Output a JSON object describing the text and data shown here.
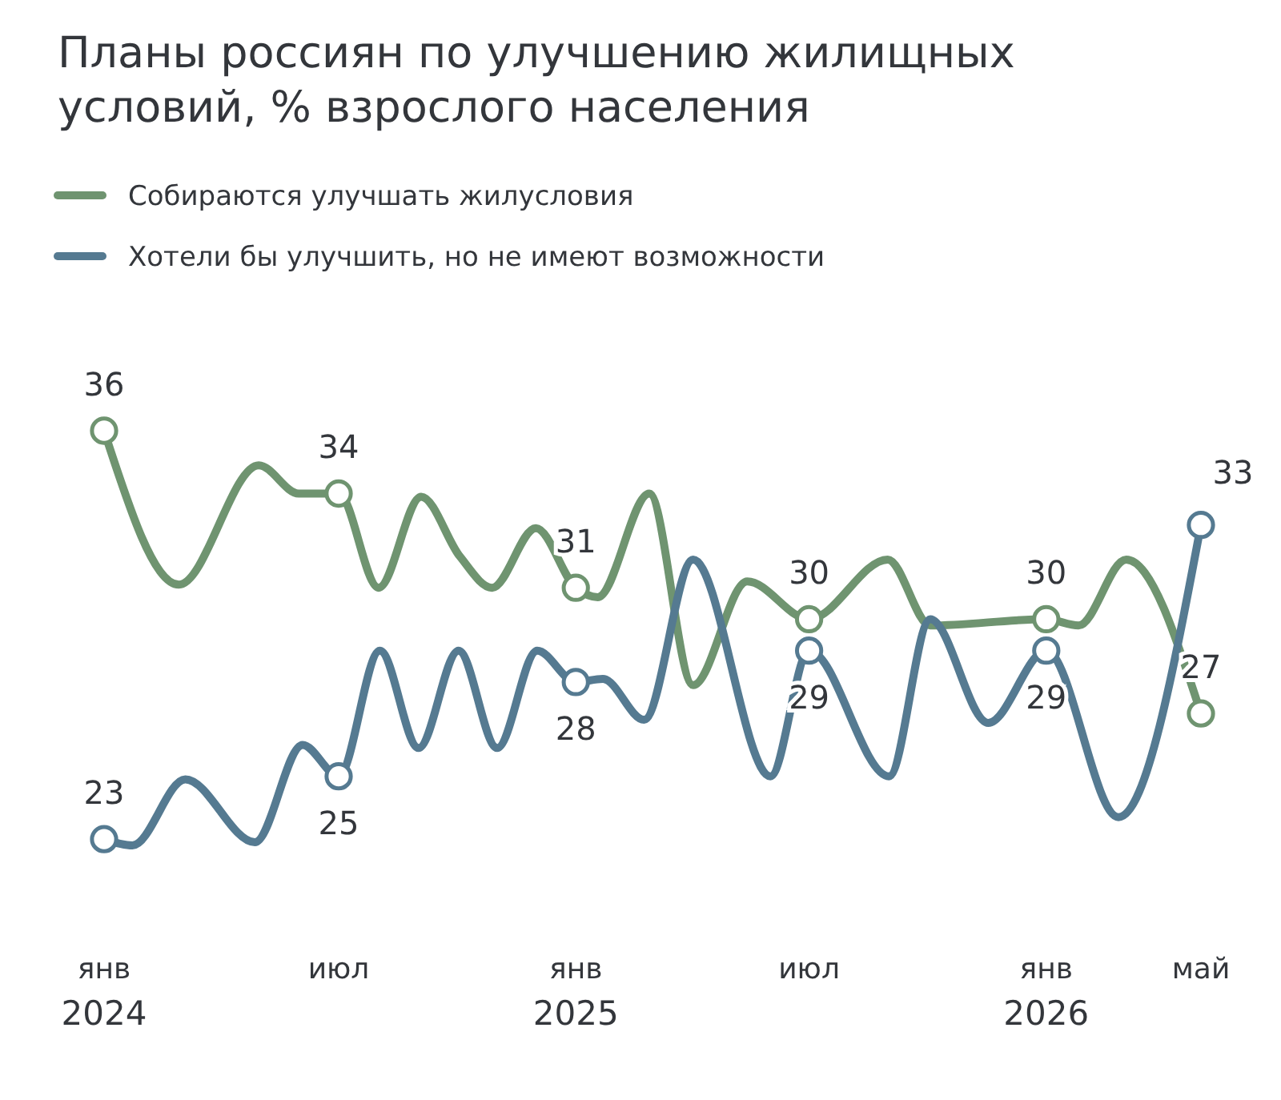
{
  "chart_data": {
    "type": "line",
    "title": "Планы россиян по улучшению жилищных условий, % взрослого населения",
    "legend": "top left",
    "grid": false,
    "line_style": "solid",
    "tick_labels": "x",
    "xlim": [
      "2024-01-01",
      "2026-05-01"
    ],
    "xticks": [
      {
        "value": "2024-01-01",
        "label": "янв 2024"
      },
      {
        "value": "2024-07-01",
        "label": "июл"
      },
      {
        "value": "2025-01-01",
        "label": "янв 2025"
      },
      {
        "value": "2025-07-01",
        "label": "июл"
      },
      {
        "value": "2026-01-01",
        "label": "янв 2026"
      },
      {
        "value": "2026-05-01",
        "label": "май"
      }
    ],
    "series": [
      {
        "name": "Собираются улучшать жилусловия",
        "color": "#6f9470",
        "x": [
          "2024-01-01",
          "2024-02-28",
          "2024-04-30",
          "2024-05-31",
          "2024-07-01",
          "2024-08-01",
          "2024-09-03",
          "2024-10-03",
          "2024-10-28",
          "2024-12-01",
          "2025-01-01",
          "2025-01-18",
          "2025-02-27",
          "2025-04-02",
          "2025-05-14",
          "2025-07-01",
          "2025-08-31",
          "2025-10-03",
          "2026-01-01",
          "2026-01-26",
          "2026-03-04",
          "2026-05-01"
        ],
        "values": [
          36,
          31.1,
          34.9,
          34,
          34,
          31,
          33.9,
          32,
          31,
          32.9,
          31,
          30.7,
          34,
          27.9,
          31.2,
          30,
          31.9,
          29.8,
          30,
          29.8,
          31.9,
          27
        ],
        "value_labels": [
          "36",
          null,
          null,
          null,
          "34",
          null,
          null,
          null,
          null,
          null,
          "31",
          null,
          null,
          null,
          null,
          "30",
          null,
          null,
          "30",
          null,
          null,
          "27"
        ]
      },
      {
        "name": "Хотели бы улучшить, но не имеют возможности",
        "color": "#557a91",
        "x": [
          "2024-01-01",
          "2024-01-23",
          "2024-03-04",
          "2024-04-27",
          "2024-06-03",
          "2024-07-01",
          "2024-08-02",
          "2024-09-01",
          "2024-10-02",
          "2024-11-01",
          "2024-12-02",
          "2025-01-01",
          "2025-01-22",
          "2025-02-23",
          "2025-04-02",
          "2025-06-01",
          "2025-07-01",
          "2025-09-01",
          "2025-10-03",
          "2025-11-17",
          "2026-01-01",
          "2026-02-26",
          "2026-05-01"
        ],
        "values": [
          23,
          22.8,
          24.9,
          22.9,
          26,
          25,
          29,
          25.9,
          29,
          25.9,
          29,
          28,
          28.1,
          26.8,
          31.9,
          25,
          29,
          25,
          30,
          26.7,
          29,
          23.7,
          33
        ],
        "value_labels": [
          "23",
          null,
          null,
          null,
          null,
          "25",
          null,
          null,
          null,
          null,
          null,
          "28",
          null,
          null,
          null,
          null,
          "29",
          null,
          null,
          null,
          "29",
          null,
          "33"
        ]
      }
    ]
  }
}
